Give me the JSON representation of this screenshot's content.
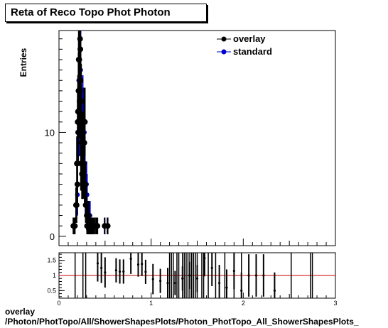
{
  "title": "Reta of Reco Topo Phot Photon",
  "footer": {
    "line1": "overlay",
    "line2": "/Photon/PhotTopo/All/ShowerShapesPlots/Photon_PhotTopo_All_ShowerShapesPlots_"
  },
  "chart_data": [
    {
      "type": "scatter",
      "title": "Reta of Reco Topo Phot Photon",
      "xlabel": "",
      "ylabel": "Entries",
      "xlim": [
        0,
        3
      ],
      "ylim": [
        -0.9,
        19.8
      ],
      "y_ticks": [
        0,
        10
      ],
      "x_tick_labels": [],
      "legend": {
        "placement": "top-right",
        "entries": [
          "overlay",
          "standard"
        ]
      },
      "grid": false,
      "series": [
        {
          "name": "overlay",
          "color": "#000000",
          "x": [
            0.175,
            0.26,
            0.29,
            0.375,
            0.4,
            0.42,
            0.44,
            0.46,
            0.48,
            0.5,
            0.52,
            0.54,
            0.56,
            0.58,
            0.6,
            0.62,
            0.64,
            0.66,
            0.68,
            0.7,
            0.72,
            0.74,
            0.76,
            0.78,
            0.8,
            0.82,
            0.84,
            0.86,
            0.88,
            0.9,
            0.92,
            0.94,
            0.96,
            0.98,
            1.0,
            1.02,
            1.04,
            1.06,
            1.08,
            1.1,
            1.12,
            1.14,
            1.16,
            1.18,
            1.2,
            1.22,
            1.24,
            1.26,
            1.28,
            1.3,
            1.32,
            1.34,
            1.36,
            1.38,
            1.4,
            1.42,
            1.44,
            1.46,
            1.48,
            1.5,
            1.55,
            1.57,
            1.62,
            1.7,
            1.8,
            1.9,
            1.98,
            2.52,
            2.73,
            2.75
          ],
          "y": [
            1,
            1,
            1,
            3,
            3,
            3,
            7,
            7,
            5,
            11,
            12,
            10,
            14,
            17,
            14,
            17,
            13,
            14,
            19,
            18,
            15,
            7,
            13,
            7,
            9,
            6,
            6,
            6,
            9,
            9,
            6,
            9,
            7,
            11,
            9,
            5,
            11,
            5,
            5,
            3,
            3,
            3,
            3,
            2,
            1,
            1,
            1,
            2,
            1,
            1,
            2,
            1,
            1,
            1,
            1,
            1,
            1,
            1,
            1,
            1,
            1,
            1,
            1,
            1,
            1,
            1,
            1,
            1,
            1,
            1
          ],
          "yerr": [
            0.8,
            0.8,
            0.8,
            1.7,
            1.7,
            1.7,
            2.6,
            2.6,
            2.2,
            3.3,
            3.5,
            3.2,
            3.7,
            4.1,
            3.7,
            4.1,
            3.6,
            3.7,
            4.4,
            4.2,
            3.9,
            2.6,
            3.6,
            2.6,
            3.0,
            2.4,
            2.4,
            2.4,
            3.0,
            3.0,
            2.4,
            3.0,
            2.6,
            3.3,
            3.0,
            2.2,
            3.3,
            2.2,
            2.2,
            1.7,
            1.7,
            1.7,
            1.7,
            1.4,
            0.8,
            0.8,
            0.8,
            1.4,
            0.8,
            0.8,
            1.4,
            0.8,
            0.8,
            0.8,
            0.8,
            0.8,
            0.8,
            0.8,
            0.8,
            0.8,
            0.8,
            0.8,
            0.8,
            0.8,
            0.8,
            0.8,
            0.8,
            0.8,
            0.8,
            0.8
          ]
        },
        {
          "name": "standard",
          "color": "#0000cc",
          "x": [
            0.46,
            0.48,
            0.5,
            0.56,
            0.58,
            0.6,
            0.64,
            0.68,
            0.7,
            0.72,
            0.76,
            0.8,
            0.84,
            0.88,
            0.92,
            0.96,
            1.0,
            1.04,
            1.08,
            1.12,
            1.16,
            1.2,
            1.24,
            1.28,
            1.32,
            1.36,
            1.42,
            2.52,
            2.73
          ],
          "y": [
            5,
            4,
            10,
            12,
            15,
            15,
            11,
            14,
            13,
            16,
            8,
            11,
            8,
            12,
            10,
            9,
            10,
            7,
            4,
            4,
            5,
            4,
            2,
            2,
            2,
            2,
            2,
            1,
            1
          ],
          "yerr": [
            2.2,
            2.0,
            3.2,
            3.5,
            3.9,
            3.9,
            3.3,
            3.7,
            3.6,
            4.0,
            2.8,
            3.3,
            2.8,
            3.5,
            3.2,
            3.0,
            3.2,
            2.6,
            2.0,
            2.0,
            2.2,
            2.0,
            1.4,
            1.4,
            1.4,
            1.4,
            1.4,
            0.8,
            0.8
          ]
        }
      ]
    },
    {
      "type": "scatter",
      "title": "",
      "xlabel": "",
      "ylabel": "",
      "xlim": [
        0,
        3
      ],
      "ylim": [
        0.25,
        1.75
      ],
      "y_tick_labels": [
        "0.5",
        "1",
        "1.5"
      ],
      "x_tick_labels": [
        "0",
        "1",
        "2",
        "3"
      ],
      "reference_line": {
        "y": 1,
        "color": "#cc0000"
      },
      "series": [
        {
          "name": "",
          "color": "#000000",
          "x": [
            0.46,
            0.48,
            0.5,
            0.56,
            0.58,
            0.6,
            0.64,
            0.68,
            0.7,
            0.72,
            0.76,
            0.8,
            0.84,
            0.88,
            0.92,
            0.96,
            1.0,
            1.04,
            1.08,
            1.12,
            1.16,
            1.2,
            1.24,
            1.28,
            1.32,
            1.36,
            1.42
          ],
          "y": [
            1.4,
            1.25,
            1.1,
            1.17,
            1.13,
            1.13,
            1.55,
            1.36,
            1.38,
            1.12,
            0.88,
            0.82,
            0.75,
            0.75,
            0.9,
            1.0,
            0.9,
            1.57,
            1.25,
            0.75,
            0.6,
            1.15,
            0.5,
            1.0,
            1.0,
            1.0,
            0.5
          ],
          "yerr": [
            0.6,
            0.5,
            0.5,
            0.4,
            0.4,
            0.4,
            0.5,
            0.4,
            0.4,
            0.4,
            0.5,
            0.4,
            0.5,
            0.4,
            0.4,
            0.45,
            0.45,
            0.6,
            0.6,
            0.6,
            0.6,
            0.6,
            0.6,
            0.7,
            0.7,
            0.7,
            0.6
          ]
        }
      ]
    }
  ]
}
